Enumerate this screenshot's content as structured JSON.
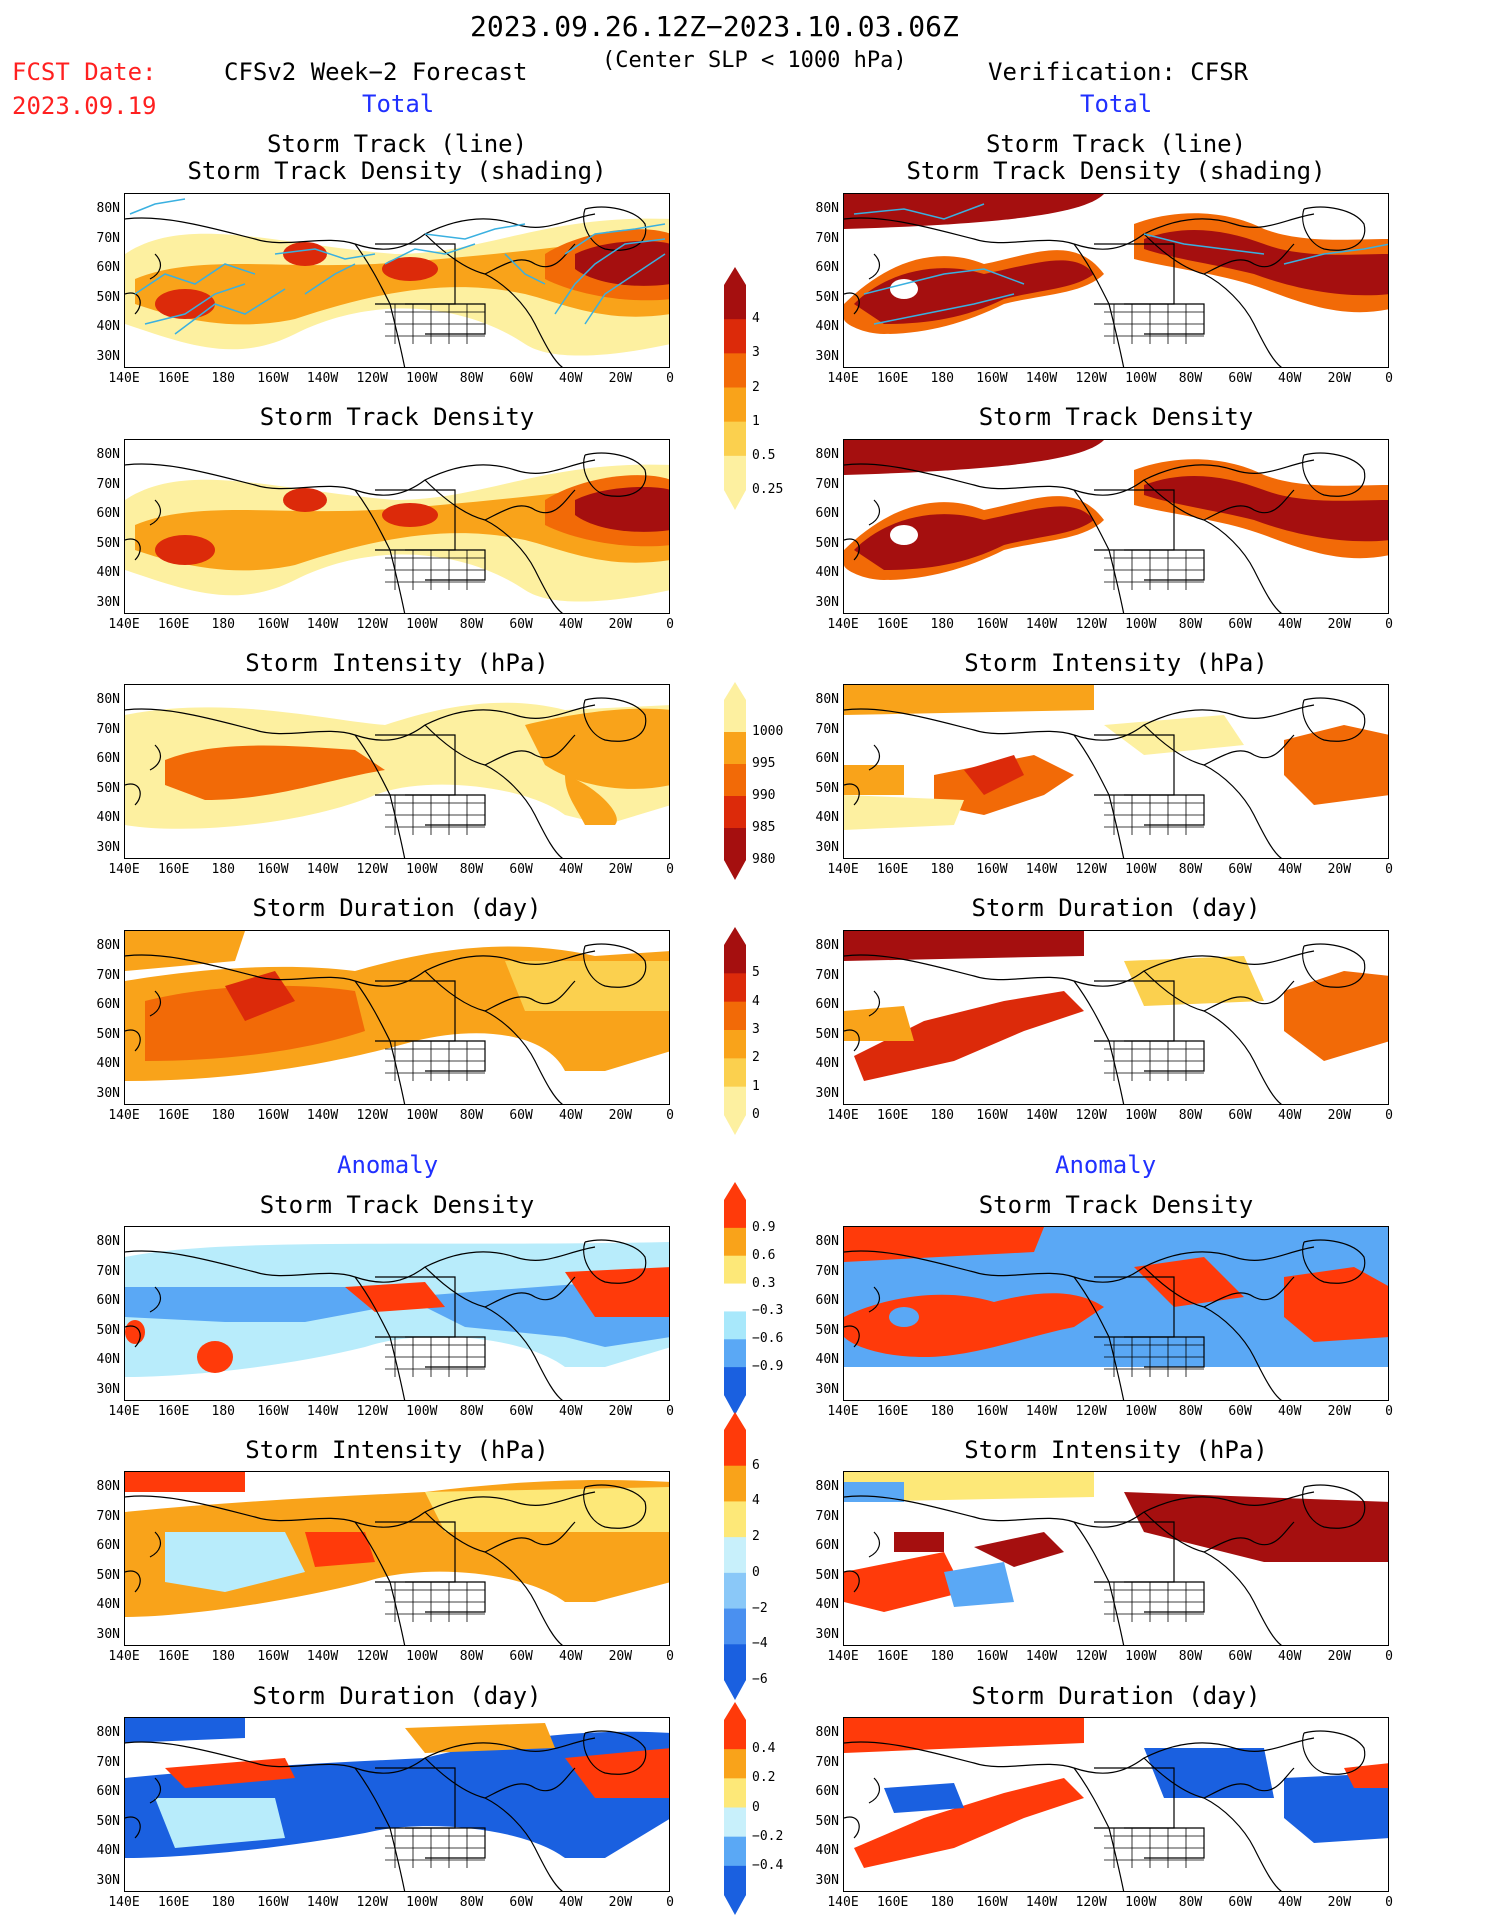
{
  "header": {
    "period": "2023.09.26.12Z−2023.10.03.06Z",
    "criterion": "(Center SLP < 1000 hPa)",
    "fcst_label": "FCST Date:",
    "fcst_date": "2023.09.19",
    "left_title": "CFSv2 Week−2 Forecast",
    "right_title": "Verification: CFSR",
    "total_label": "Total",
    "anomaly_label": "Anomaly"
  },
  "panel_titles": {
    "track": [
      "Storm Track (line)",
      "Storm Track Density (shading)"
    ],
    "density": "Storm Track Density",
    "intensity": "Storm Intensity (hPa)",
    "duration": "Storm Duration (day)"
  },
  "axes": {
    "lat_ticks": [
      "80N",
      "70N",
      "60N",
      "50N",
      "40N",
      "30N"
    ],
    "lon_ticks": [
      "140E",
      "160E",
      "180",
      "160W",
      "140W",
      "120W",
      "100W",
      "80W",
      "60W",
      "40W",
      "20W",
      "0"
    ]
  },
  "colorbars": {
    "density": {
      "labels": [
        "4",
        "3",
        "2",
        "1",
        "0.5",
        "0.25"
      ],
      "colors": [
        "#a50f0f",
        "#dc2a0a",
        "#f26a07",
        "#f9a31a",
        "#fbd04e",
        "#fdf0a0"
      ]
    },
    "intensity": {
      "labels": [
        "1000",
        "995",
        "990",
        "985",
        "980"
      ],
      "colors": [
        "#fdf0a0",
        "#f9a31a",
        "#f26a07",
        "#dc2a0a",
        "#a50f0f"
      ]
    },
    "duration": {
      "labels": [
        "5",
        "4",
        "3",
        "2",
        "1",
        "0"
      ],
      "colors": [
        "#a50f0f",
        "#dc2a0a",
        "#f26a07",
        "#f9a31a",
        "#fbd04e",
        "#fdf0a0"
      ]
    },
    "anom_density": {
      "labels": [
        "0.9",
        "0.6",
        "0.3",
        "−0.3",
        "−0.6",
        "−0.9"
      ],
      "colors": [
        "#ff3a0a",
        "#f9a31a",
        "#fde878",
        "#ffffff",
        "#a8e8fb",
        "#5aa8f5",
        "#1a60e0"
      ]
    },
    "anom_intensity": {
      "labels": [
        "6",
        "4",
        "2",
        "0",
        "−2",
        "−4",
        "−6"
      ],
      "colors": [
        "#ff3a0a",
        "#f9a31a",
        "#fde878",
        "#c8f0fb",
        "#8ac8f8",
        "#4a90f0",
        "#1a60e0"
      ]
    },
    "anom_duration": {
      "labels": [
        "0.4",
        "0.2",
        "0",
        "−0.2",
        "−0.4"
      ],
      "colors": [
        "#ff3a0a",
        "#f9a31a",
        "#fde878",
        "#c8f0fb",
        "#5aa8f5",
        "#1a60e0"
      ]
    }
  },
  "palette": {
    "c1": "#fdf0a0",
    "c2": "#fbd04e",
    "c3": "#f9a31a",
    "c4": "#f26a07",
    "c5": "#dc2a0a",
    "c6": "#a50f0f",
    "a_pos3": "#ff3a0a",
    "a_pos2": "#f9a31a",
    "a_pos1": "#fde878",
    "a_neg1": "#b8ecfb",
    "a_neg2": "#5aa8f5",
    "a_neg3": "#1a60e0",
    "track_line": "#3ab0e0"
  }
}
